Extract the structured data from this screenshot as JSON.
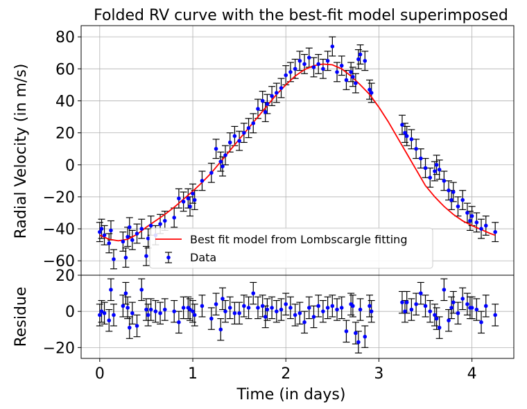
{
  "chart_data": [
    {
      "type": "scatter",
      "title": "Folded RV curve with the best-fit model superimposed",
      "xlabel": "",
      "ylabel": "Radial Velocity (in m/s)",
      "xlim": [
        -0.2,
        4.45
      ],
      "ylim": [
        -69,
        87
      ],
      "yticks": [
        80,
        60,
        40,
        20,
        0,
        -20,
        -40,
        -60
      ],
      "ytick_labels": [
        "80",
        "60",
        "40",
        "20",
        "0",
        "−20",
        "−40",
        "−60"
      ],
      "grid": true,
      "legend_position": "lower-center",
      "legend": [
        "Best fit model from Lombscargle fitting",
        "Data"
      ],
      "series": [
        {
          "name": "Best fit model from Lombscargle fitting",
          "type": "line",
          "color": "#ff0000",
          "x": [
            0,
            0.1,
            0.2,
            0.3,
            0.4,
            0.5,
            0.6,
            0.7,
            0.8,
            0.9,
            1.0,
            1.1,
            1.2,
            1.3,
            1.4,
            1.5,
            1.6,
            1.7,
            1.8,
            1.9,
            2.0,
            2.1,
            2.2,
            2.3,
            2.4,
            2.5,
            2.6,
            2.7,
            2.8,
            2.9,
            3.0,
            3.1,
            3.2,
            3.3,
            3.4,
            3.5,
            3.6,
            3.7,
            3.8,
            3.9,
            4.0,
            4.1,
            4.2,
            4.25
          ],
          "y": [
            -44,
            -46.5,
            -47.5,
            -46.5,
            -43.5,
            -39,
            -35,
            -31,
            -26.5,
            -21.5,
            -16.5,
            -11,
            -5,
            2,
            9,
            16,
            23,
            30,
            37,
            44,
            50,
            55.5,
            59.5,
            62,
            63,
            62.5,
            60,
            55.5,
            50,
            44,
            36,
            27,
            17,
            7,
            -3,
            -13,
            -20,
            -26,
            -31,
            -35,
            -38,
            -40.5,
            -43,
            -44
          ]
        },
        {
          "name": "Data",
          "type": "errorbar",
          "color": "#0000ff",
          "yerr": 6,
          "x": [
            0.0,
            0.02,
            0.05,
            0.1,
            0.12,
            0.15,
            0.25,
            0.28,
            0.3,
            0.32,
            0.35,
            0.4,
            0.45,
            0.5,
            0.52,
            0.55,
            0.6,
            0.65,
            0.7,
            0.8,
            0.85,
            0.9,
            0.95,
            0.97,
            1.0,
            1.02,
            1.1,
            1.2,
            1.25,
            1.3,
            1.32,
            1.35,
            1.4,
            1.45,
            1.5,
            1.55,
            1.6,
            1.65,
            1.7,
            1.75,
            1.78,
            1.8,
            1.85,
            1.9,
            1.95,
            2.0,
            2.05,
            2.1,
            2.15,
            2.2,
            2.25,
            2.3,
            2.35,
            2.4,
            2.45,
            2.5,
            2.55,
            2.6,
            2.65,
            2.7,
            2.72,
            2.75,
            2.78,
            2.8,
            2.85,
            2.9,
            2.92,
            3.25,
            3.28,
            3.3,
            3.35,
            3.4,
            3.45,
            3.5,
            3.55,
            3.6,
            3.62,
            3.65,
            3.7,
            3.75,
            3.78,
            3.8,
            3.85,
            3.9,
            3.95,
            3.98,
            4.0,
            4.05,
            4.1,
            4.15,
            4.25
          ],
          "y": [
            -42,
            -40,
            -44,
            -49,
            -41,
            -59,
            -48,
            -58,
            -45,
            -39,
            -47,
            -43,
            -40,
            -57,
            -46,
            -38,
            -44,
            -37,
            -35,
            -33,
            -21,
            -23,
            -21,
            -26,
            -18,
            -22,
            -10,
            -5,
            10,
            2,
            -1,
            6,
            14,
            18,
            15,
            20,
            23,
            26,
            35,
            40,
            33,
            38,
            43,
            45,
            48,
            56,
            58,
            60,
            65,
            63,
            67,
            61,
            63,
            60,
            65,
            74,
            58,
            62,
            53,
            58,
            55,
            51,
            66,
            69,
            65,
            47,
            45,
            25,
            20,
            18,
            16,
            10,
            4,
            -2,
            -8,
            -4,
            0,
            -3,
            -10,
            -16,
            -22,
            -17,
            -26,
            -22,
            -30,
            -35,
            -32,
            -36,
            -40,
            -38,
            -42
          ]
        }
      ]
    },
    {
      "type": "scatter",
      "title": "",
      "xlabel": "Time (in days)",
      "ylabel": "Residue",
      "xlim": [
        -0.2,
        4.45
      ],
      "ylim": [
        -26,
        20
      ],
      "xticks": [
        0,
        1,
        2,
        3,
        4
      ],
      "xtick_labels": [
        "0",
        "1",
        "2",
        "3",
        "4"
      ],
      "yticks": [
        20,
        0,
        -20
      ],
      "ytick_labels": [
        "20",
        "0",
        "−20"
      ],
      "grid": true,
      "series": [
        {
          "name": "",
          "type": "errorbar",
          "color": "#0000ff",
          "yerr": 6,
          "x": [
            0.0,
            0.02,
            0.05,
            0.1,
            0.12,
            0.15,
            0.25,
            0.28,
            0.3,
            0.32,
            0.35,
            0.4,
            0.45,
            0.5,
            0.52,
            0.55,
            0.6,
            0.65,
            0.7,
            0.8,
            0.85,
            0.9,
            0.95,
            0.97,
            1.0,
            1.02,
            1.1,
            1.2,
            1.25,
            1.3,
            1.32,
            1.35,
            1.4,
            1.45,
            1.5,
            1.55,
            1.6,
            1.65,
            1.7,
            1.75,
            1.78,
            1.8,
            1.85,
            1.9,
            1.95,
            2.0,
            2.05,
            2.1,
            2.15,
            2.2,
            2.25,
            2.3,
            2.35,
            2.4,
            2.45,
            2.5,
            2.55,
            2.6,
            2.65,
            2.7,
            2.72,
            2.75,
            2.78,
            2.8,
            2.85,
            2.9,
            2.92,
            3.25,
            3.28,
            3.3,
            3.35,
            3.4,
            3.45,
            3.5,
            3.55,
            3.6,
            3.62,
            3.65,
            3.7,
            3.75,
            3.78,
            3.8,
            3.85,
            3.9,
            3.95,
            3.98,
            4.0,
            4.05,
            4.1,
            4.15,
            4.25
          ],
          "y": [
            -2,
            0,
            -1,
            -5,
            12,
            -2,
            3,
            10,
            2,
            -9,
            -1,
            -8,
            12,
            1,
            -2,
            1,
            0,
            -1,
            1,
            0,
            -6,
            2,
            2,
            1,
            0,
            -2,
            3,
            -4,
            4,
            -10,
            7,
            0,
            2,
            -1,
            -1,
            3,
            2,
            10,
            2,
            3,
            -3,
            1,
            2,
            0,
            1,
            4,
            2,
            -2,
            -1,
            -6,
            2,
            -3,
            3,
            0,
            2,
            3,
            1,
            2,
            -11,
            4,
            3,
            -12,
            -17,
            1,
            -14,
            3,
            0,
            5,
            0,
            5,
            1,
            4,
            10,
            3,
            0,
            -2,
            -4,
            -9,
            12,
            -5,
            2,
            5,
            -1,
            7,
            4,
            2,
            2,
            1,
            -6,
            3,
            -2
          ]
        }
      ]
    }
  ]
}
